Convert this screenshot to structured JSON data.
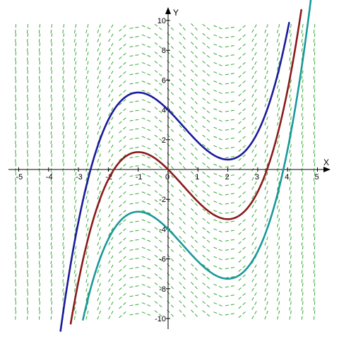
{
  "colors": {
    "background": "#ffffff",
    "slope_field": "#33aa33",
    "axes": "#000000"
  },
  "chart_data": {
    "type": "line",
    "title": "",
    "xlabel": "X",
    "ylabel": "Y",
    "xlim": [
      -5.6,
      5.3
    ],
    "ylim": [
      -10.4,
      10.4
    ],
    "x_ticks": [
      -5,
      -4,
      -3,
      -2,
      -1,
      0,
      1,
      2,
      3,
      4,
      5
    ],
    "x_tick_labels": [
      "-5",
      "-4",
      "-3",
      "-2",
      "-1",
      "0",
      "1",
      "2",
      "3",
      "4",
      "5"
    ],
    "y_ticks": [
      -10,
      -8,
      -6,
      -4,
      -2,
      2,
      4,
      6,
      8,
      10
    ],
    "y_tick_labels": [
      "-10",
      "-8",
      "-6",
      "-4",
      "-2",
      "2",
      "4",
      "6",
      "8",
      "10"
    ],
    "grid": false,
    "slope_field": {
      "equation": "dy/dx = x^2 - x - 2",
      "x_start": -5.1,
      "x_end": 4.9,
      "x_step": 0.4,
      "y_start": -9.7,
      "y_end": 9.7,
      "y_step": 0.62
    },
    "series": [
      {
        "color": "#1a1a9c",
        "x": [
          -3.6,
          -3.2,
          -2.8,
          -2.4,
          -2.0,
          -1.6,
          -1.2,
          -1.0,
          -0.8,
          -0.4,
          0.0,
          0.4,
          0.8,
          1.2,
          1.6,
          2.0,
          2.4,
          2.8,
          3.2,
          3.6,
          4.0,
          4.05
        ],
        "y": [
          -9.9,
          -6.56,
          -3.71,
          -1.33,
          0.67,
          2.27,
          3.58,
          5.17,
          5.0,
          4.67,
          4.0,
          3.15,
          2.25,
          1.44,
          0.84,
          0.67,
          1.01,
          2.17,
          4.27,
          7.44,
          9.33,
          9.9
        ]
      },
      {
        "color": "#8b1a1a",
        "x": [
          -3.26,
          -3.0,
          -2.6,
          -2.2,
          -1.8,
          -1.4,
          -1.0,
          -0.6,
          -0.2,
          0.0,
          0.4,
          0.8,
          1.2,
          1.6,
          2.0,
          2.4,
          2.8,
          3.2,
          3.6,
          4.0,
          4.4,
          4.46
        ],
        "y": [
          -9.9,
          -7.5,
          -4.27,
          -1.81,
          0.02,
          1.09,
          1.17,
          0.92,
          0.39,
          0.0,
          -0.85,
          -1.75,
          -2.56,
          -3.16,
          -3.33,
          -2.99,
          -1.83,
          0.27,
          3.44,
          5.33,
          9.33,
          9.9
        ]
      },
      {
        "color": "#1a9999",
        "x": [
          -2.85,
          -2.6,
          -2.2,
          -1.8,
          -1.4,
          -1.0,
          -0.6,
          -0.2,
          0.0,
          0.4,
          0.8,
          1.2,
          1.6,
          2.0,
          2.4,
          2.8,
          3.2,
          3.6,
          4.0,
          4.4,
          4.8,
          4.85
        ],
        "y": [
          -9.9,
          -8.27,
          -5.81,
          -3.98,
          -2.91,
          -2.83,
          -3.08,
          -3.61,
          -4.0,
          -4.85,
          -5.75,
          -6.56,
          -7.16,
          -7.33,
          -6.99,
          -5.83,
          -3.73,
          -0.56,
          1.33,
          5.33,
          9.33,
          9.9
        ]
      }
    ]
  }
}
